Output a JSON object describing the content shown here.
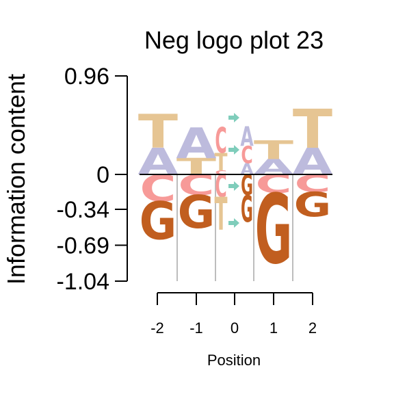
{
  "chart_data": {
    "type": "sequence-logo",
    "title": "Neg logo plot 23",
    "xlabel": "Position",
    "ylabel": "Information content",
    "x_ticks": [
      "-2",
      "-1",
      "0",
      "1",
      "2"
    ],
    "y_ticks": [
      "0.96",
      "0",
      "-0.34",
      "-0.69",
      "-1.04"
    ],
    "y_tick_values": [
      0.96,
      0,
      -0.34,
      -0.69,
      -1.04
    ],
    "ylim": [
      -1.04,
      0.96
    ],
    "colors": {
      "A": "#bdbbdd",
      "T": "#e6c593",
      "C": "#f79a98",
      "G": "#c15e1f",
      "arrow": "#7fcdbb"
    },
    "positions": [
      {
        "position": "-2",
        "positive": [
          {
            "letter": "A",
            "value": 0.26
          },
          {
            "letter": "T",
            "value": 0.33
          }
        ],
        "negative": [
          {
            "letter": "C",
            "value": 0.26
          },
          {
            "letter": "G",
            "value": 0.37
          }
        ]
      },
      {
        "position": "-1",
        "positive": [
          {
            "letter": "T",
            "value": 0.16
          },
          {
            "letter": "A",
            "value": 0.3
          }
        ],
        "negative": [
          {
            "letter": "C",
            "value": 0.2
          },
          {
            "letter": "G",
            "value": 0.32
          }
        ]
      },
      {
        "position": "0",
        "positive": [
          {
            "letter": "C",
            "value": 0.04
          },
          {
            "letter": "T",
            "value": 0.17
          },
          {
            "letter": "C",
            "value": 0.25
          }
        ],
        "negative": [
          {
            "letter": "C",
            "value": 0.22
          },
          {
            "letter": "T",
            "value": 0.32
          }
        ]
      },
      {
        "position": "0-insert",
        "positive": [
          {
            "letter": "A",
            "value": 0.11
          },
          {
            "letter": "C",
            "value": 0.17
          },
          {
            "letter": "A",
            "value": 0.19
          }
        ],
        "negative": [
          {
            "letter": "G",
            "value": 0.2
          },
          {
            "letter": "G",
            "value": 0.26
          }
        ]
      },
      {
        "position": "1",
        "positive": [
          {
            "letter": "A",
            "value": 0.15
          },
          {
            "letter": "T",
            "value": 0.18
          }
        ],
        "negative": [
          {
            "letter": "C",
            "value": 0.18
          },
          {
            "letter": "G",
            "value": 0.68
          }
        ]
      },
      {
        "position": "2",
        "positive": [
          {
            "letter": "A",
            "value": 0.26
          },
          {
            "letter": "T",
            "value": 0.38
          }
        ],
        "negative": [
          {
            "letter": "C",
            "value": 0.17
          },
          {
            "letter": "G",
            "value": 0.24
          }
        ]
      }
    ]
  }
}
